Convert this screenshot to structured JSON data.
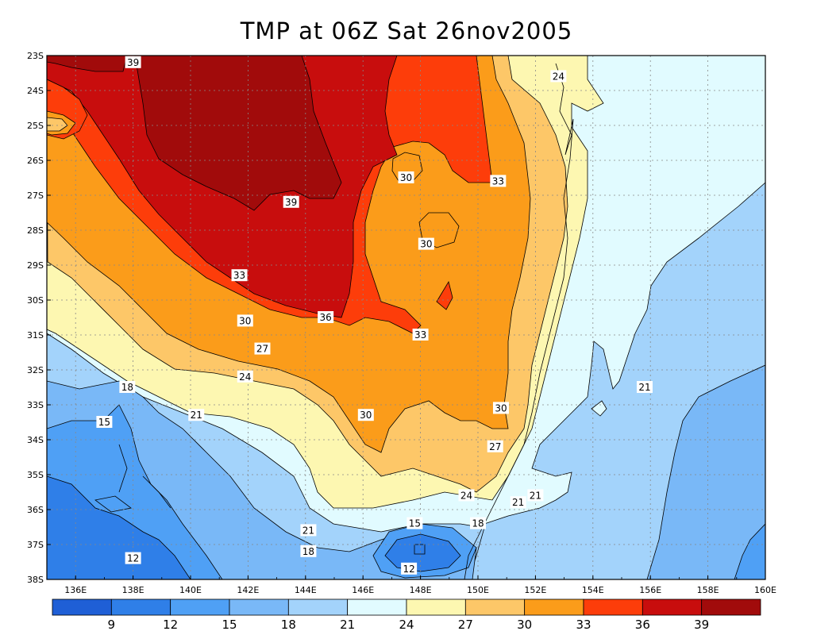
{
  "chart_data": {
    "type": "contour map",
    "title": "TMP at 06Z Sat 26nov2005",
    "x_ticks": [
      "136E",
      "138E",
      "140E",
      "142E",
      "144E",
      "146E",
      "148E",
      "150E",
      "152E",
      "154E",
      "156E",
      "158E",
      "160E"
    ],
    "y_ticks": [
      "23S",
      "24S",
      "25S",
      "26S",
      "27S",
      "28S",
      "29S",
      "30S",
      "31S",
      "32S",
      "33S",
      "34S",
      "35S",
      "36S",
      "37S",
      "38S"
    ],
    "xlim": [
      135,
      160
    ],
    "ylim": [
      -38,
      -23
    ],
    "grid": true,
    "contour_levels": [
      9,
      12,
      15,
      18,
      21,
      24,
      27,
      30,
      33,
      36,
      39
    ],
    "colorbar_labels": [
      "9",
      "12",
      "15",
      "18",
      "21",
      "24",
      "27",
      "30",
      "33",
      "36",
      "39"
    ],
    "colorbar_colors": [
      "#1f5fd6",
      "#2f7fe8",
      "#4fa0f5",
      "#79b8f7",
      "#a3d3fb",
      "#e1fbff",
      "#fdf7b1",
      "#fdc768",
      "#fb9c1a",
      "#fd3d0a",
      "#c80d0d",
      "#a10b0b"
    ],
    "contour_labels": [
      {
        "text": "39",
        "lon": 138.0,
        "lat": -23.2
      },
      {
        "text": "39",
        "lon": 143.5,
        "lat": -27.2
      },
      {
        "text": "24",
        "lon": 152.8,
        "lat": -23.6
      },
      {
        "text": "30",
        "lon": 147.5,
        "lat": -26.5
      },
      {
        "text": "33",
        "lon": 150.7,
        "lat": -26.6
      },
      {
        "text": "30",
        "lon": 148.2,
        "lat": -28.4
      },
      {
        "text": "33",
        "lon": 141.7,
        "lat": -29.3
      },
      {
        "text": "36",
        "lon": 144.7,
        "lat": -30.5
      },
      {
        "text": "30",
        "lon": 141.9,
        "lat": -30.6
      },
      {
        "text": "33",
        "lon": 148.0,
        "lat": -31.0
      },
      {
        "text": "27",
        "lon": 142.5,
        "lat": -31.4
      },
      {
        "text": "24",
        "lon": 141.9,
        "lat": -32.2
      },
      {
        "text": "21",
        "lon": 155.8,
        "lat": -32.5
      },
      {
        "text": "18",
        "lon": 137.8,
        "lat": -32.5
      },
      {
        "text": "21",
        "lon": 140.2,
        "lat": -33.3
      },
      {
        "text": "30",
        "lon": 150.8,
        "lat": -33.1
      },
      {
        "text": "30",
        "lon": 146.1,
        "lat": -33.3
      },
      {
        "text": "15",
        "lon": 137.0,
        "lat": -33.5
      },
      {
        "text": "27",
        "lon": 150.6,
        "lat": -34.2
      },
      {
        "text": "24",
        "lon": 149.6,
        "lat": -35.6
      },
      {
        "text": "21",
        "lon": 152.0,
        "lat": -35.6
      },
      {
        "text": "21",
        "lon": 151.4,
        "lat": -35.8
      },
      {
        "text": "15",
        "lon": 147.8,
        "lat": -36.4
      },
      {
        "text": "18",
        "lon": 150.0,
        "lat": -36.4
      },
      {
        "text": "21",
        "lon": 144.1,
        "lat": -36.6
      },
      {
        "text": "18",
        "lon": 144.1,
        "lat": -37.2
      },
      {
        "text": "12",
        "lon": 138.0,
        "lat": -37.4
      },
      {
        "text": "12",
        "lon": 147.6,
        "lat": -37.7
      }
    ]
  }
}
